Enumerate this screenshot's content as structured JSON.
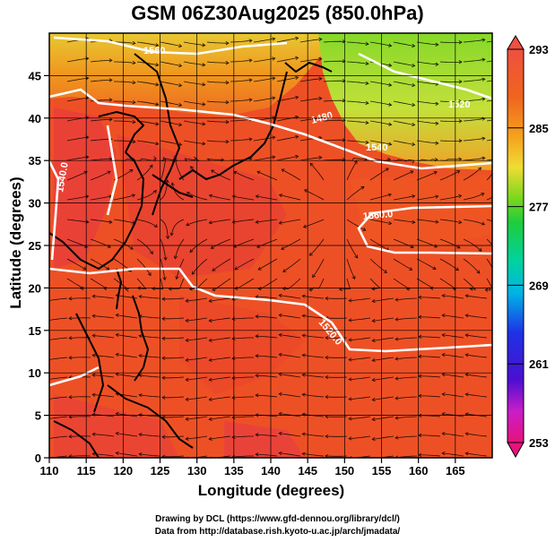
{
  "title": "GSM 06Z30Aug2025 (850.0hPa)",
  "xlabel": "Longitude (degrees)",
  "ylabel": "Latitude  (degrees)",
  "credits": {
    "line1": "Drawing by DCL (https://www.gfd-dennou.org/library/dcl/)",
    "line2": "Data from http://database.rish.kyoto-u.ac.jp/arch/jmadata/"
  },
  "x_axis": {
    "min": 110,
    "max": 170,
    "ticks": [
      "110",
      "115",
      "120",
      "125",
      "130",
      "135",
      "140",
      "145",
      "150",
      "155",
      "160",
      "165"
    ]
  },
  "y_axis": {
    "min": 0,
    "max": 50,
    "ticks": [
      "0",
      "5",
      "10",
      "15",
      "20",
      "25",
      "30",
      "35",
      "40",
      "45"
    ]
  },
  "colorbar": {
    "min": 253,
    "max": 293,
    "tick_labels": [
      "293",
      "285",
      "277",
      "269",
      "261",
      "253"
    ],
    "colors": [
      "#e8127c",
      "#c81ec8",
      "#4b0fd2",
      "#1e32e6",
      "#0a78e6",
      "#00b4e6",
      "#00d2a0",
      "#1ecd3c",
      "#78d71e",
      "#bee632",
      "#f0dc32",
      "#f5a01e",
      "#f0641e",
      "#e63c28",
      "#ef5040"
    ]
  },
  "contour_labels": [
    "1480",
    "1540",
    "1560",
    "1520",
    "1560.0",
    "1520.0",
    "1540.0"
  ],
  "colors": {
    "background": "#ffffff",
    "map_base": "#ee5025",
    "warm_land": "#e83c34",
    "cool_north": "#7ed62a",
    "contour": "#ffffff",
    "coastline": "#000000"
  }
}
